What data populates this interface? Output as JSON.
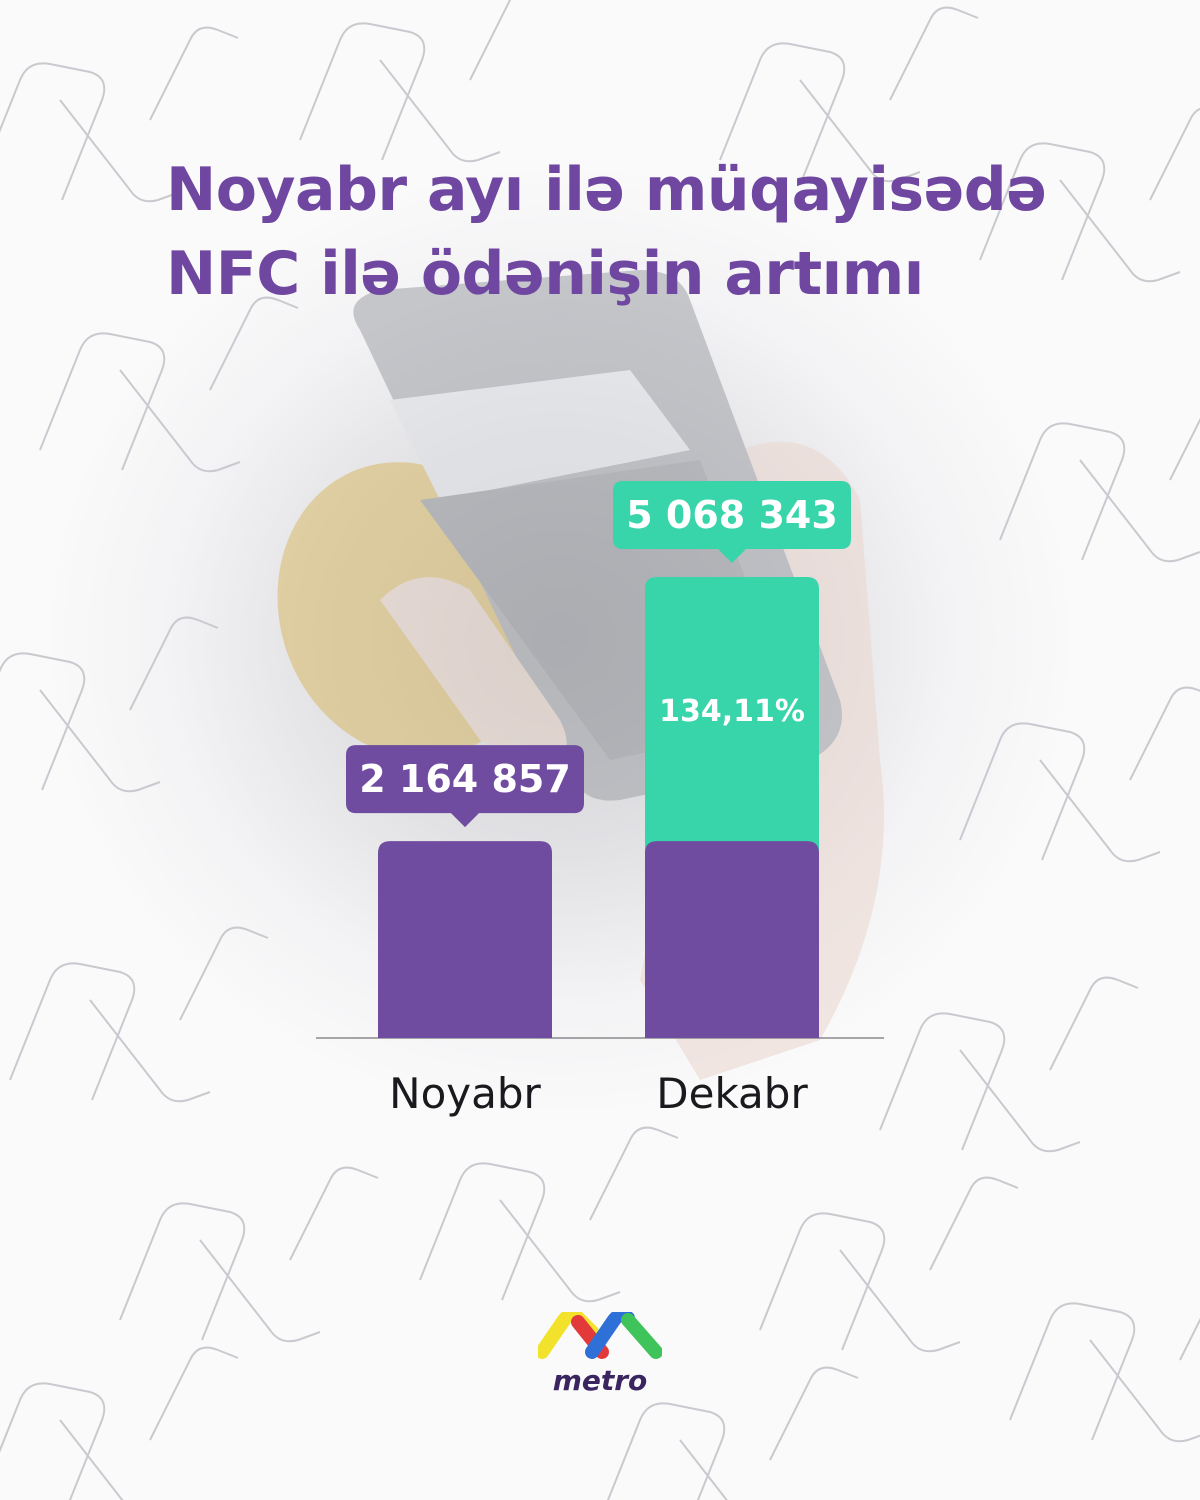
{
  "title": {
    "line1": "Noyabr ayı ilə müqayisədə",
    "line2": "NFC ilə ödənişin artımı"
  },
  "chart_data": {
    "type": "bar",
    "categories": [
      "Noyabr",
      "Dekabr"
    ],
    "values": [
      2164857,
      5068343
    ],
    "value_labels": [
      "2 164 857",
      "5 068 343"
    ],
    "increase_label": "134,11%",
    "colors": {
      "base": "#6f4ca0",
      "increase": "#38d4aa"
    },
    "grid": false
  },
  "logo": {
    "text": "metro",
    "colors": [
      "#f2e22c",
      "#e23a3a",
      "#2f6fd8",
      "#3ec45a"
    ]
  }
}
